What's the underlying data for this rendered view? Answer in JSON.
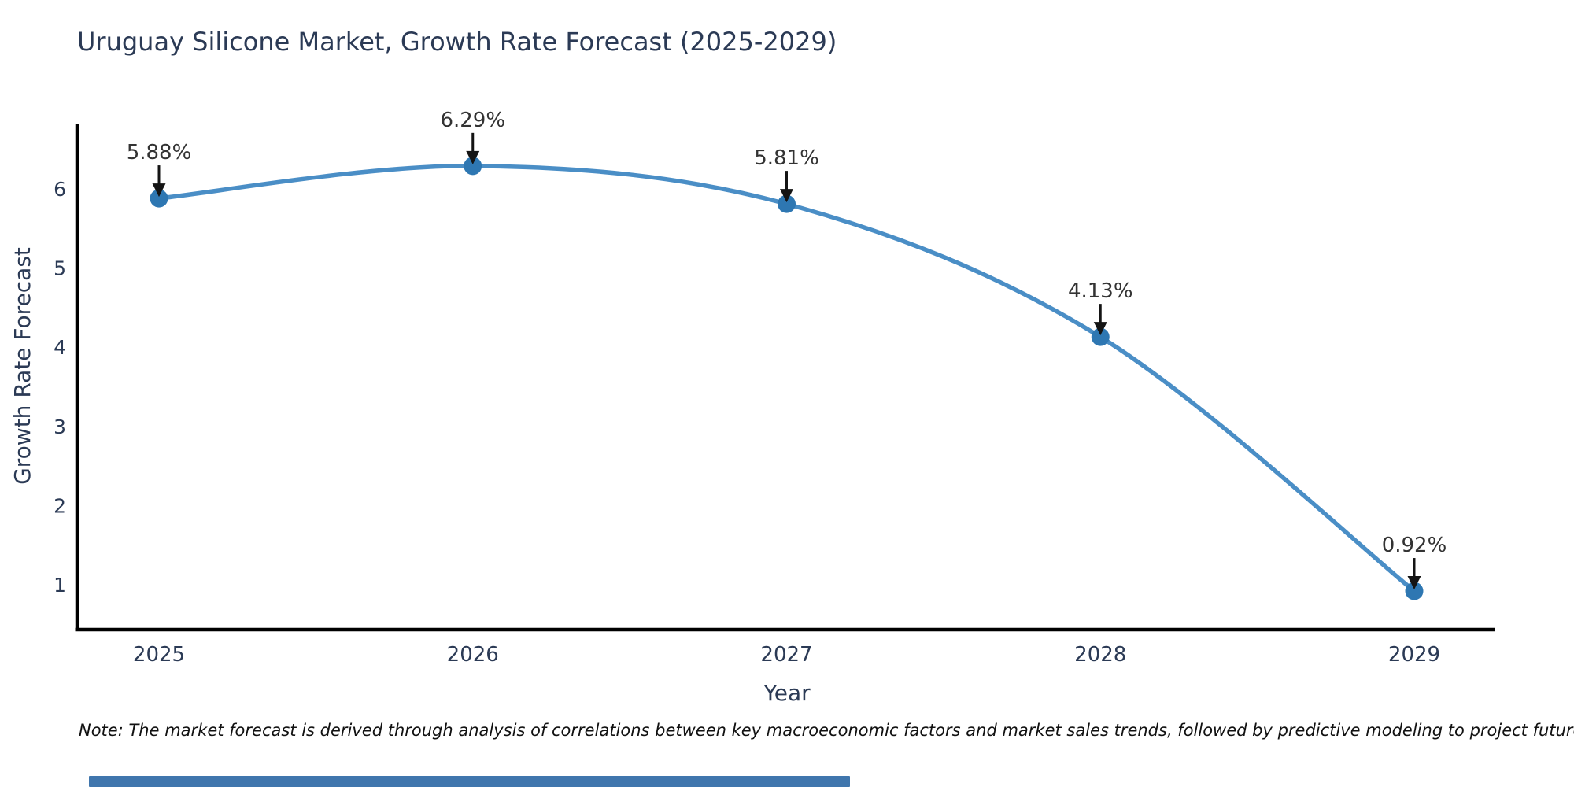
{
  "title": "Uruguay Silicone Market, Growth Rate Forecast (2025-2029)",
  "note": "Note: The market forecast is derived through analysis of correlations between key macroeconomic factors and market sales trends, followed by predictive modeling to project future sales.",
  "chart_data": {
    "type": "line",
    "title": "Uruguay Silicone Market, Growth Rate Forecast (2025-2029)",
    "xlabel": "Year",
    "ylabel": "Growth Rate Forecast",
    "categories": [
      "2025",
      "2026",
      "2027",
      "2028",
      "2029"
    ],
    "values": [
      5.88,
      6.29,
      5.81,
      4.13,
      0.92
    ],
    "point_labels": [
      "5.88%",
      "6.29%",
      "5.81%",
      "4.13%",
      "0.92%"
    ],
    "yticks": [
      "1",
      "2",
      "3",
      "4",
      "5",
      "6"
    ],
    "ylim": [
      0.43,
      6.81
    ],
    "xlim": [
      "2024.7",
      "2029.3"
    ],
    "grid": false,
    "legend": "none",
    "marker_style": "circle",
    "annotation_style": "down-arrow",
    "line_color": "#4a8ec6",
    "marker_color": "#2e77b2",
    "arrow_color": "#141414"
  },
  "colors": {
    "background": "#ffffff",
    "title_text": "#2b3a55",
    "tick_label": "#2b3a55",
    "axis_title": "#2b3a55",
    "axis_line": "#000000",
    "annotation_text": "#333333",
    "note_text": "#111111",
    "bottom_bar": "#4076ad"
  }
}
